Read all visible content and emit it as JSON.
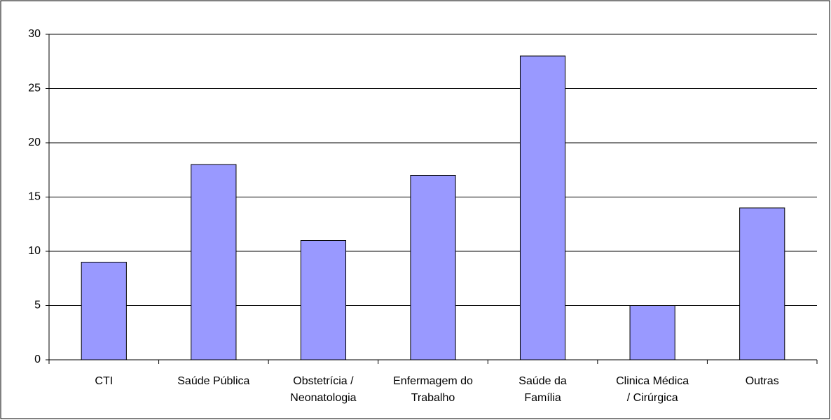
{
  "chart_data": {
    "type": "bar",
    "categories": [
      "CTI",
      "Saúde Pública",
      "Obstetrícia /\nNeonatologia",
      "Enfermagem do\nTrabalho",
      "Saúde da\nFamília",
      "Clinica Médica\n/ Cirúrgica",
      "Outras"
    ],
    "values": [
      9,
      18,
      11,
      17,
      28,
      5,
      14
    ],
    "color": "#9999ff",
    "ylim": [
      0,
      30
    ],
    "yticks": [
      0,
      5,
      10,
      15,
      20,
      25,
      30
    ],
    "grid": true
  }
}
